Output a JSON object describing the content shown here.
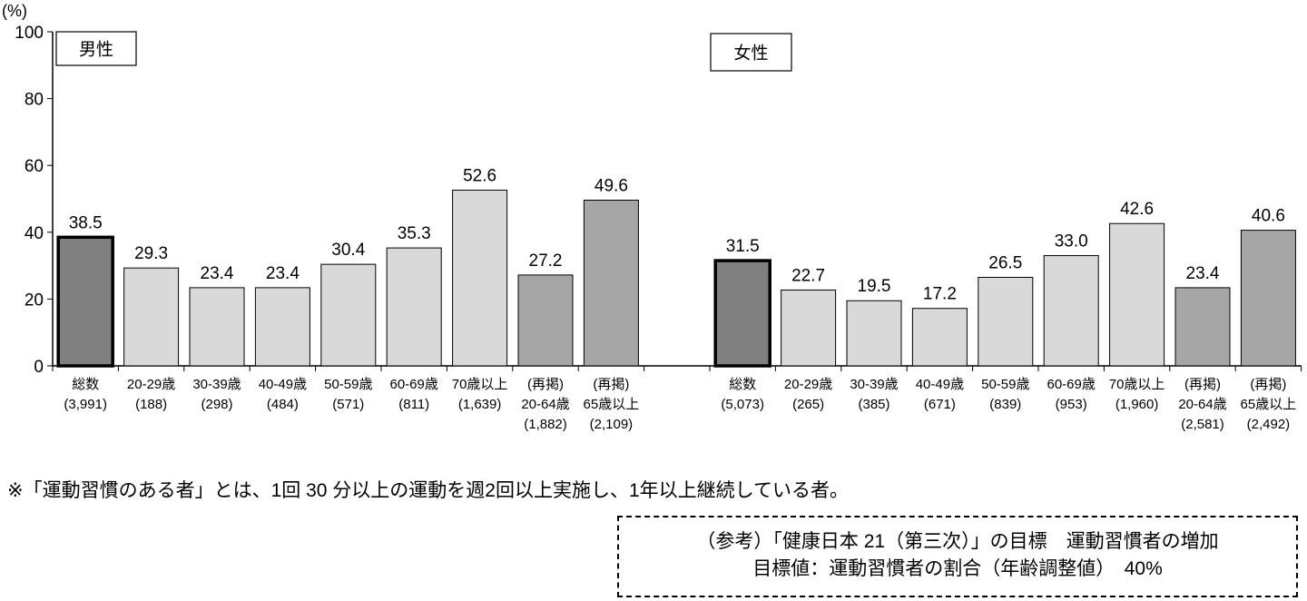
{
  "chart_data": {
    "type": "bar",
    "ylabel": "(%)",
    "ylim": [
      0,
      100
    ],
    "yticks": [
      0,
      20,
      40,
      60,
      80,
      100
    ],
    "groups": [
      {
        "name": "男性",
        "categories": [
          [
            "総数",
            "(3,991)"
          ],
          [
            "20-29歳",
            "(188)"
          ],
          [
            "30-39歳",
            "(298)"
          ],
          [
            "40-49歳",
            "(484)"
          ],
          [
            "50-59歳",
            "(571)"
          ],
          [
            "60-69歳",
            "(811)"
          ],
          [
            "70歳以上",
            "(1,639)"
          ],
          [
            "(再掲)",
            "20-64歳",
            "(1,882)"
          ],
          [
            "(再掲)",
            "65歳以上",
            "(2,109)"
          ]
        ],
        "values": [
          38.5,
          29.3,
          23.4,
          23.4,
          30.4,
          35.3,
          52.6,
          27.2,
          49.6
        ],
        "kinds": [
          "total",
          "age",
          "age",
          "age",
          "age",
          "age",
          "age",
          "re",
          "re"
        ]
      },
      {
        "name": "女性",
        "categories": [
          [
            "総数",
            "(5,073)"
          ],
          [
            "20-29歳",
            "(265)"
          ],
          [
            "30-39歳",
            "(385)"
          ],
          [
            "40-49歳",
            "(671)"
          ],
          [
            "50-59歳",
            "(839)"
          ],
          [
            "60-69歳",
            "(953)"
          ],
          [
            "70歳以上",
            "(1,960)"
          ],
          [
            "(再掲)",
            "20-64歳",
            "(2,581)"
          ],
          [
            "(再掲)",
            "65歳以上",
            "(2,492)"
          ]
        ],
        "values": [
          31.5,
          22.7,
          19.5,
          17.2,
          26.5,
          33.0,
          42.6,
          23.4,
          40.6
        ],
        "kinds": [
          "total",
          "age",
          "age",
          "age",
          "age",
          "age",
          "age",
          "re",
          "re"
        ]
      }
    ],
    "colors": {
      "total": "#808080",
      "age": "#d9d9d9",
      "re": "#a6a6a6"
    }
  },
  "note": "※「運動習慣のある者」とは、1回 30 分以上の運動を週2回以上実施し、1年以上継続している者。",
  "reference": {
    "line1": "（参考）「健康日本 21（第三次）」の目標　運動習慣者の増加",
    "line2": "目標値：運動習慣者の割合（年齢調整値）　40%"
  }
}
